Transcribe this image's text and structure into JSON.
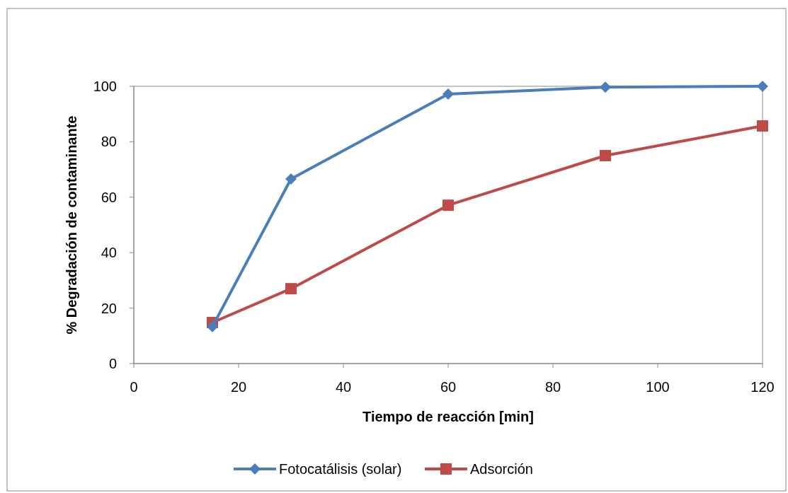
{
  "chart_data": {
    "type": "line",
    "xlabel": "Tiempo de reacción [min]",
    "ylabel": "% Degradación de contaminante",
    "xlim": [
      0,
      120
    ],
    "xticks": [
      0,
      20,
      40,
      60,
      80,
      100,
      120
    ],
    "ylim": [
      0,
      100
    ],
    "yticks": [
      0,
      20,
      40,
      60,
      80,
      100
    ],
    "grid": false,
    "legend": "bottom",
    "line_style": "solid",
    "series": [
      {
        "name": "Fotocatálisis (solar)",
        "color": "#4a7ebb",
        "marker": "diamond",
        "x": [
          15,
          30,
          60,
          90,
          120
        ],
        "values": [
          13.3,
          66.6,
          97.2,
          99.7,
          100
        ]
      },
      {
        "name": "Adsorción",
        "color": "#be4b48",
        "marker": "square",
        "x": [
          15,
          30,
          60,
          90,
          120
        ],
        "values": [
          14.8,
          27,
          57.1,
          75,
          85.7
        ]
      }
    ]
  }
}
